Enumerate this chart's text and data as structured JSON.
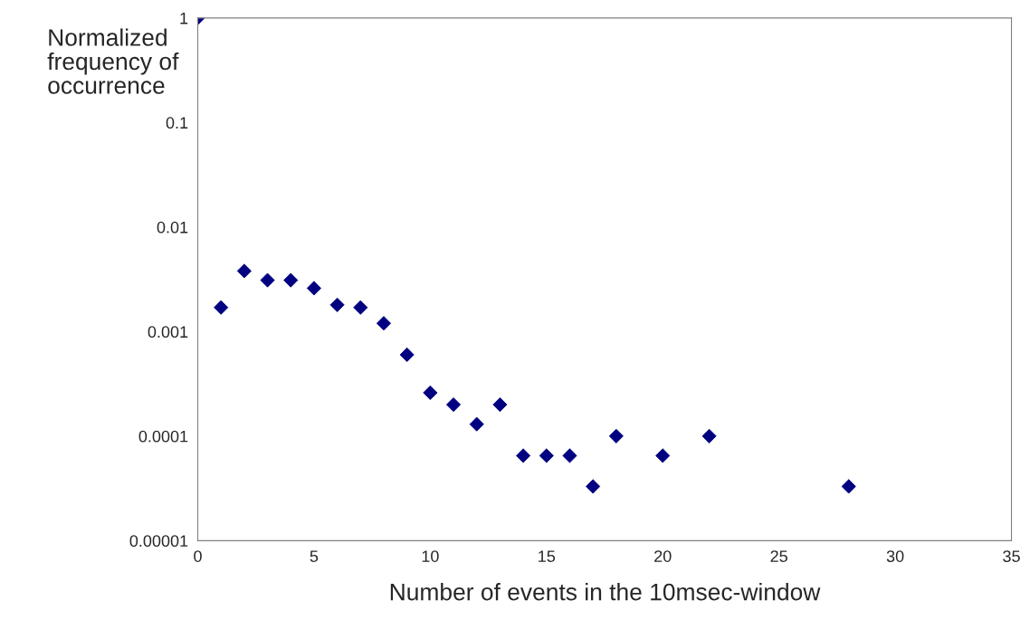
{
  "chart_data": {
    "type": "scatter",
    "xlabel": "Number of events in the 10msec-window",
    "ylabel": "Normalized\nfrequency of\noccurrence",
    "x": [
      0,
      1,
      2,
      3,
      4,
      5,
      6,
      7,
      8,
      9,
      10,
      11,
      12,
      13,
      14,
      15,
      16,
      17,
      18,
      20,
      22,
      28
    ],
    "series": [
      {
        "color": "#000080",
        "values": [
          1,
          0.0017,
          0.0038,
          0.0031,
          0.0031,
          0.0026,
          0.0018,
          0.0017,
          0.0012,
          0.0006,
          0.00026,
          0.0002,
          0.00013,
          0.0002,
          6.5e-05,
          6.5e-05,
          6.5e-05,
          3.3e-05,
          0.0001,
          6.5e-05,
          0.0001,
          3.3e-05
        ]
      }
    ],
    "log": "y",
    "xlim": [
      0,
      35
    ],
    "xticks": [
      0,
      5,
      10,
      15,
      20,
      25,
      30,
      35
    ],
    "ylim": [
      1e-05,
      1
    ],
    "yticks": [
      {
        "value": 1e-05,
        "label": "0.00001"
      },
      {
        "value": 0.0001,
        "label": "0.0001"
      },
      {
        "value": 0.001,
        "label": "0.001"
      },
      {
        "value": 0.01,
        "label": "0.01"
      },
      {
        "value": 0.1,
        "label": "0.1"
      },
      {
        "value": 1,
        "label": "1"
      }
    ],
    "marker": "diamond",
    "grid": false,
    "legend": false
  }
}
